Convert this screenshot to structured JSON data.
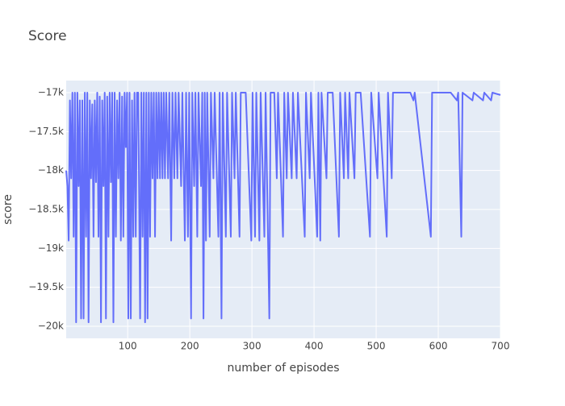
{
  "chart_data": {
    "type": "line",
    "title": "Score",
    "x_label": "number of episodes",
    "y_label": "score",
    "color": "#636efa",
    "grid": true,
    "xlim": [
      1,
      700
    ],
    "xticks": [
      100,
      200,
      300,
      400,
      500,
      600,
      700
    ],
    "ylim": [
      -20155,
      -16845
    ],
    "yticks": [
      {
        "value": -20000,
        "label": "−20k"
      },
      {
        "value": -19500,
        "label": "−19.5k"
      },
      {
        "value": -19000,
        "label": "−19k"
      },
      {
        "value": -18500,
        "label": "−18.5k"
      },
      {
        "value": -18000,
        "label": "−18k"
      },
      {
        "value": -17500,
        "label": "−17.5k"
      },
      {
        "value": -17000,
        "label": "−17k"
      }
    ],
    "x": [
      1,
      3,
      5,
      7,
      9,
      11,
      13,
      15,
      17,
      19,
      21,
      23,
      25,
      27,
      29,
      31,
      33,
      35,
      37,
      39,
      41,
      43,
      45,
      47,
      49,
      51,
      53,
      55,
      57,
      59,
      61,
      63,
      65,
      67,
      69,
      71,
      73,
      75,
      77,
      79,
      81,
      83,
      85,
      87,
      89,
      91,
      93,
      95,
      97,
      99,
      101,
      103,
      105,
      107,
      109,
      111,
      113,
      115,
      117,
      120,
      122,
      124,
      126,
      128,
      130,
      132,
      134,
      136,
      138,
      140,
      142,
      144,
      146,
      148,
      150,
      152,
      154,
      156,
      158,
      160,
      162,
      165,
      167,
      170,
      172,
      175,
      177,
      180,
      182,
      186,
      188,
      192,
      194,
      197,
      199,
      202,
      204,
      207,
      209,
      212,
      214,
      218,
      220,
      222,
      224,
      226,
      228,
      232,
      234,
      238,
      240,
      246,
      248,
      251,
      253,
      258,
      260,
      266,
      268,
      272,
      274,
      280,
      282,
      290,
      299,
      301,
      305,
      307,
      312,
      314,
      320,
      322,
      328,
      330,
      336,
      340,
      342,
      350,
      352,
      356,
      358,
      364,
      366,
      372,
      374,
      385,
      387,
      393,
      395,
      405,
      407,
      410,
      412,
      420,
      422,
      430,
      440,
      442,
      448,
      450,
      455,
      457,
      465,
      467,
      475,
      490,
      492,
      502,
      504,
      517,
      519,
      525,
      527,
      540,
      555,
      560,
      562,
      588,
      590,
      600,
      620,
      630,
      632,
      637,
      639,
      655,
      657,
      672,
      674,
      685,
      687,
      700
    ],
    "values": [
      -18000,
      -18200,
      -18900,
      -17100,
      -18100,
      -17000,
      -18850,
      -17000,
      -19950,
      -17000,
      -18200,
      -17100,
      -19900,
      -17100,
      -19900,
      -17000,
      -18850,
      -17000,
      -19950,
      -17100,
      -18100,
      -17150,
      -18850,
      -17100,
      -18150,
      -17000,
      -18850,
      -17050,
      -19950,
      -17100,
      -18200,
      -17000,
      -19900,
      -17050,
      -18850,
      -17000,
      -18150,
      -17000,
      -19950,
      -17000,
      -18850,
      -17100,
      -18100,
      -17000,
      -18900,
      -17050,
      -18850,
      -17000,
      -17700,
      -17000,
      -19900,
      -17000,
      -19900,
      -17100,
      -18850,
      -17000,
      -18850,
      -17000,
      -17000,
      -19900,
      -17000,
      -18850,
      -17000,
      -19950,
      -17000,
      -19900,
      -17000,
      -18850,
      -17000,
      -18100,
      -17000,
      -18850,
      -17000,
      -18100,
      -17000,
      -18100,
      -17000,
      -18100,
      -17000,
      -18100,
      -17000,
      -18100,
      -17000,
      -18900,
      -17000,
      -18100,
      -17000,
      -18100,
      -17000,
      -18200,
      -17000,
      -18900,
      -17000,
      -18850,
      -17000,
      -19900,
      -17000,
      -18200,
      -17000,
      -18850,
      -17000,
      -18200,
      -17000,
      -19900,
      -17000,
      -18900,
      -17000,
      -18850,
      -17000,
      -18100,
      -17000,
      -18850,
      -17000,
      -19900,
      -17000,
      -18850,
      -17000,
      -18850,
      -17000,
      -18100,
      -17000,
      -18850,
      -17000,
      -17000,
      -18900,
      -17000,
      -18850,
      -17000,
      -18900,
      -17000,
      -18850,
      -17000,
      -19900,
      -17000,
      -17000,
      -18100,
      -17000,
      -18850,
      -17000,
      -18100,
      -17000,
      -18100,
      -17000,
      -18100,
      -17000,
      -18850,
      -17000,
      -18100,
      -17000,
      -18850,
      -17000,
      -18900,
      -17000,
      -18100,
      -17000,
      -17000,
      -18850,
      -17000,
      -18100,
      -17000,
      -18100,
      -17000,
      -18100,
      -17000,
      -17000,
      -18850,
      -17000,
      -18100,
      -17000,
      -18850,
      -17000,
      -18100,
      -17000,
      -17000,
      -17000,
      -17100,
      -17000,
      -18850,
      -17000,
      -17000,
      -17000,
      -17100,
      -17000,
      -18850,
      -17000,
      -17100,
      -17000,
      -17100,
      -17000,
      -17100,
      -17000,
      -17030
    ]
  }
}
